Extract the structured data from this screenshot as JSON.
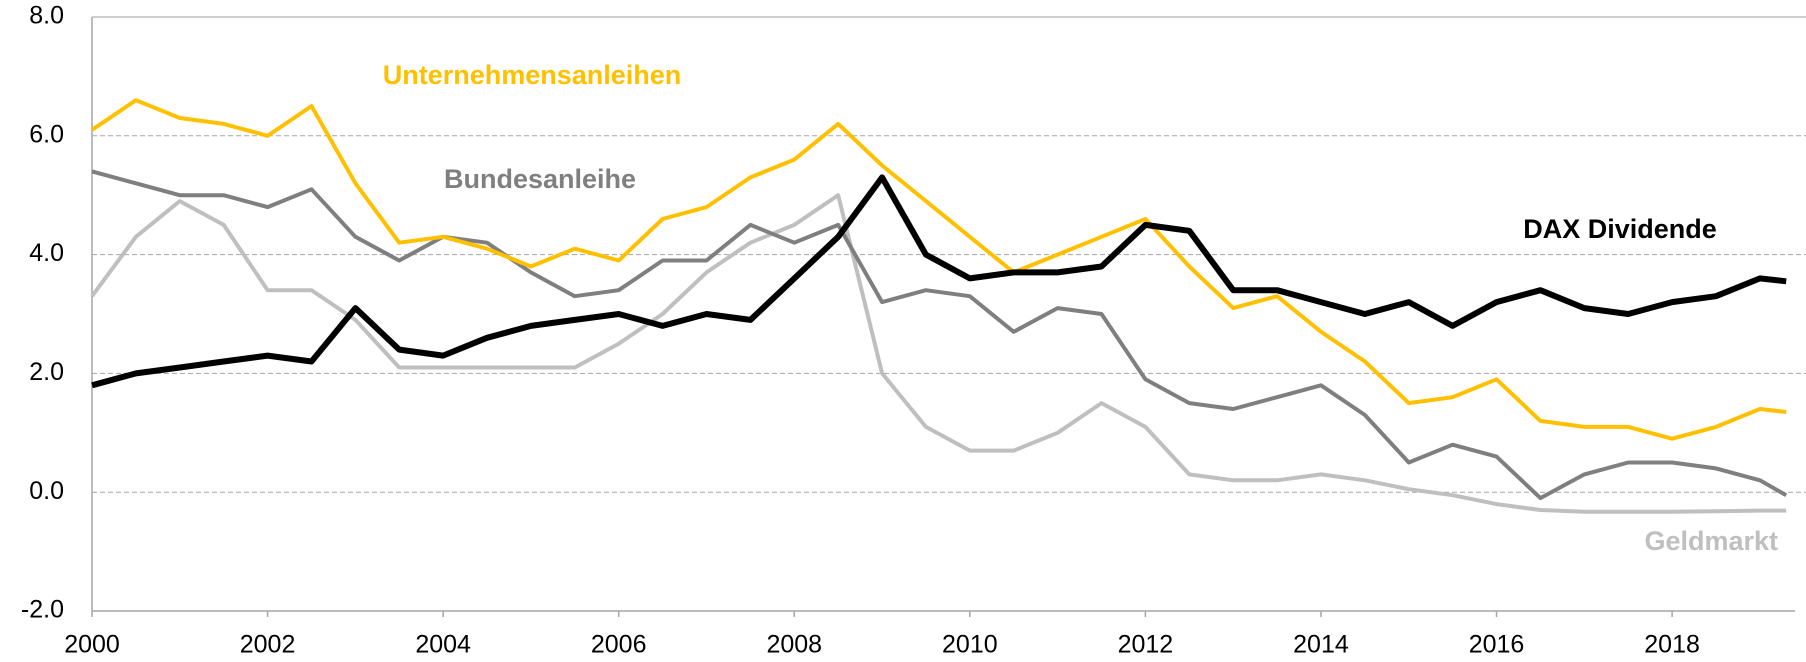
{
  "chart_data": {
    "type": "line",
    "x": [
      2000,
      2000.5,
      2001,
      2001.5,
      2002,
      2002.5,
      2003,
      2003.5,
      2004,
      2004.5,
      2005,
      2005.5,
      2006,
      2006.5,
      2007,
      2007.5,
      2008,
      2008.5,
      2009,
      2009.5,
      2010,
      2010.5,
      2011,
      2011.5,
      2012,
      2012.5,
      2013,
      2013.5,
      2014,
      2014.5,
      2015,
      2015.5,
      2016,
      2016.5,
      2017,
      2017.5,
      2018,
      2018.5,
      2019,
      2019.3
    ],
    "series": [
      {
        "name": "Geldmarkt",
        "color": "#bfbfbf",
        "values": [
          3.3,
          4.3,
          4.9,
          4.5,
          3.4,
          3.4,
          2.9,
          2.1,
          2.1,
          2.1,
          2.1,
          2.1,
          2.5,
          3.0,
          3.7,
          4.2,
          4.5,
          5.0,
          2.0,
          1.1,
          0.7,
          0.7,
          1.0,
          1.5,
          1.1,
          0.3,
          0.2,
          0.2,
          0.3,
          0.2,
          0.05,
          -0.05,
          -0.2,
          -0.3,
          -0.33,
          -0.33,
          -0.33,
          -0.32,
          -0.31,
          -0.31
        ]
      },
      {
        "name": "Bundesanleihe",
        "color": "#7f7f7f",
        "values": [
          5.4,
          5.2,
          5.0,
          5.0,
          4.8,
          5.1,
          4.3,
          3.9,
          4.3,
          4.2,
          3.7,
          3.3,
          3.4,
          3.9,
          3.9,
          4.5,
          4.2,
          4.5,
          3.2,
          3.4,
          3.3,
          2.7,
          3.1,
          3.0,
          1.9,
          1.5,
          1.4,
          1.6,
          1.8,
          1.3,
          0.5,
          0.8,
          0.6,
          -0.1,
          0.3,
          0.5,
          0.5,
          0.4,
          0.2,
          -0.05
        ]
      },
      {
        "name": "Unternehmensanleihen",
        "color": "#ffc000",
        "values": [
          6.1,
          6.6,
          6.3,
          6.2,
          6.0,
          6.5,
          5.2,
          4.2,
          4.3,
          4.1,
          3.8,
          4.1,
          3.9,
          4.6,
          4.8,
          5.3,
          5.6,
          6.2,
          5.5,
          4.9,
          4.3,
          3.7,
          4.0,
          4.3,
          4.6,
          3.8,
          3.1,
          3.3,
          2.7,
          2.2,
          1.5,
          1.6,
          1.9,
          1.2,
          1.1,
          1.1,
          0.9,
          1.1,
          1.4,
          1.35
        ]
      },
      {
        "name": "DAX Dividende",
        "color": "#000000",
        "values": [
          1.8,
          2.0,
          2.1,
          2.2,
          2.3,
          2.2,
          3.1,
          2.4,
          2.3,
          2.6,
          2.8,
          2.9,
          3.0,
          2.8,
          3.0,
          2.9,
          3.6,
          4.3,
          5.3,
          4.0,
          3.6,
          3.7,
          3.7,
          3.8,
          4.5,
          4.4,
          3.4,
          3.4,
          3.2,
          3.0,
          3.2,
          2.8,
          3.2,
          3.4,
          3.1,
          3.0,
          3.2,
          3.3,
          3.6,
          3.55
        ]
      }
    ],
    "xlim": [
      2000,
      2019.4
    ],
    "xticks": [
      2000,
      2002,
      2004,
      2006,
      2008,
      2010,
      2012,
      2014,
      2016,
      2018
    ],
    "ylim": [
      -2,
      8
    ],
    "yticks": [
      {
        "value": -2,
        "label": "-2.0"
      },
      {
        "value": 0,
        "label": "0.0"
      },
      {
        "value": 2,
        "label": "2.0"
      },
      {
        "value": 4,
        "label": "4.0"
      },
      {
        "value": 6,
        "label": "6.0"
      },
      {
        "value": 8,
        "label": "8.0"
      }
    ],
    "grid": true
  }
}
